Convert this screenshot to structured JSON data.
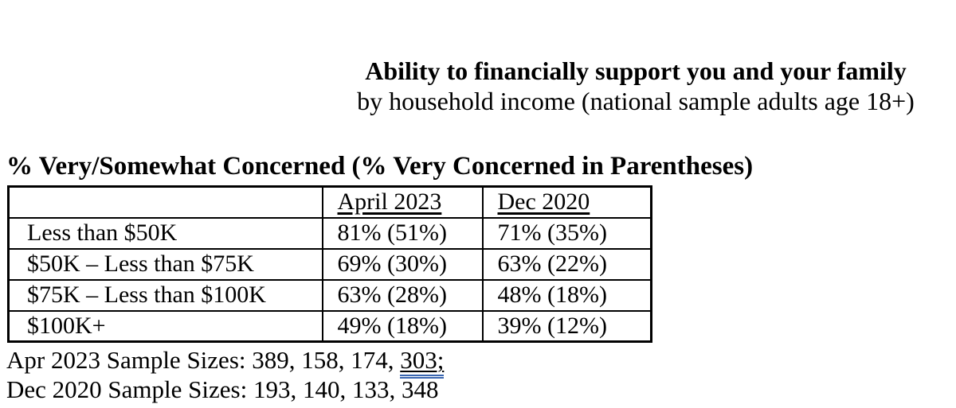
{
  "title": {
    "line1": "Ability to financially support you and your family",
    "line2": "by household income (national sample adults age 18+)"
  },
  "section_heading": "% Very/Somewhat Concerned (% Very Concerned in Parentheses)",
  "table": {
    "columns": [
      "",
      "April 2023",
      "Dec 2020"
    ],
    "rows": [
      {
        "label": "Less than $50K",
        "april_2023": "81% (51%)",
        "dec_2020": "71% (35%)"
      },
      {
        "label": "$50K – Less than $75K",
        "april_2023": "69% (30%)",
        "dec_2020": "63% (22%)"
      },
      {
        "label": "$75K – Less than $100K",
        "april_2023": "63% (28%)",
        "dec_2020": "48% (18%)"
      },
      {
        "label": "$100K+",
        "april_2023": "49% (18%)",
        "dec_2020": "39% (12%)"
      }
    ]
  },
  "notes": {
    "apr_line_prefix": "Apr 2023 Sample Sizes: 389, 158, 174, ",
    "apr_line_flagged": "303;",
    "dec_line": "Dec 2020 Sample Sizes: 193, 140, 133, 348"
  },
  "colors": {
    "text": "#000000",
    "background": "#ffffff",
    "grammar_underline_blue": "#3a66b0"
  }
}
